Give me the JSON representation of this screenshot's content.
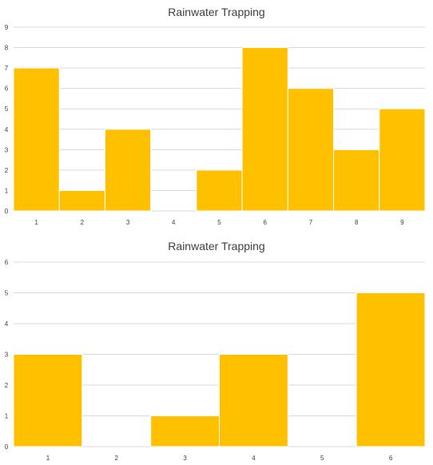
{
  "chart_data": [
    {
      "type": "bar",
      "title": "Rainwater Trapping",
      "categories": [
        "1",
        "2",
        "3",
        "4",
        "5",
        "6",
        "7",
        "8",
        "9"
      ],
      "values": [
        7,
        1,
        4,
        0,
        2,
        8,
        6,
        3,
        5
      ],
      "ylim": [
        0,
        9
      ],
      "yticks": [
        "0",
        "1",
        "2",
        "3",
        "4",
        "5",
        "6",
        "7",
        "8",
        "9"
      ],
      "xlabel": "",
      "ylabel": "",
      "grid": true,
      "color": "#ffc000"
    },
    {
      "type": "bar",
      "title": "Rainwater Trapping",
      "categories": [
        "1",
        "2",
        "3",
        "4",
        "5",
        "6"
      ],
      "values": [
        3,
        0,
        1,
        3,
        0,
        5
      ],
      "ylim": [
        0,
        6
      ],
      "yticks": [
        "0",
        "1",
        "2",
        "3",
        "4",
        "5",
        "6"
      ],
      "xlabel": "",
      "ylabel": "",
      "grid": true,
      "color": "#ffc000"
    }
  ]
}
